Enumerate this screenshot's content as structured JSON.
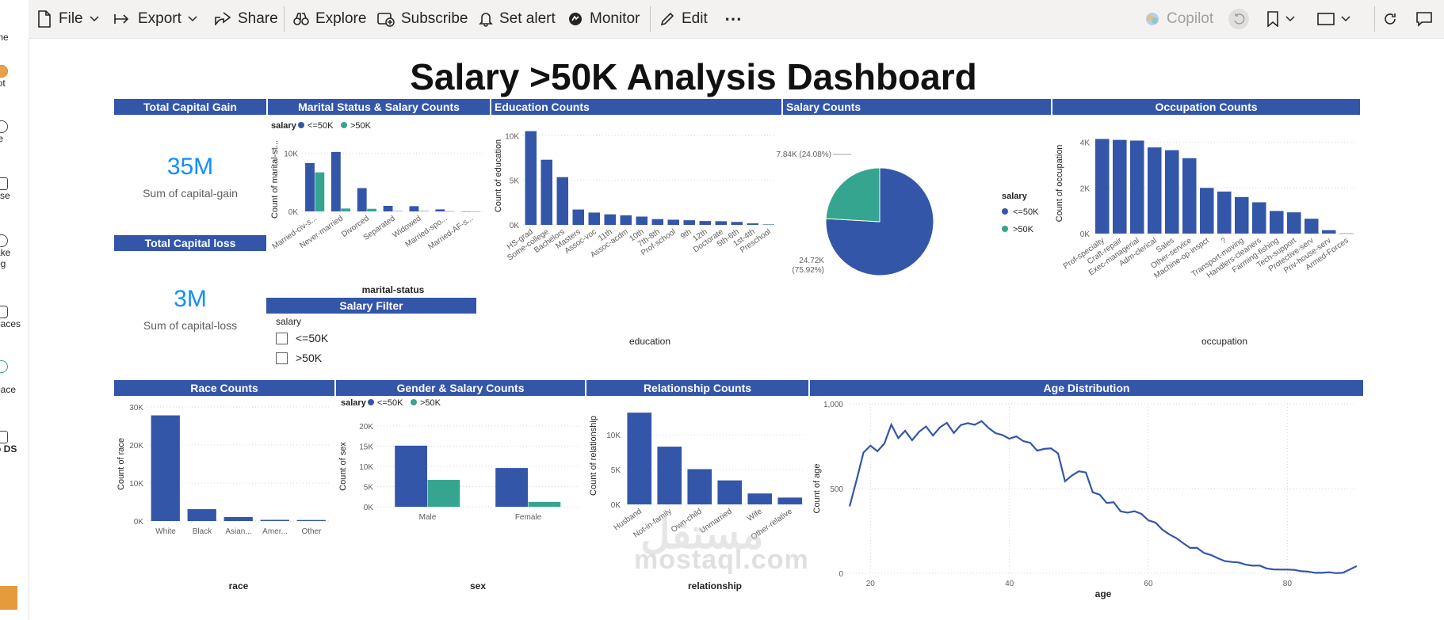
{
  "leftnav": {
    "items": [
      {
        "label": "me"
      },
      {
        "label": "lot"
      },
      {
        "label": "te"
      },
      {
        "label": "yse"
      },
      {
        "label": "ake"
      },
      {
        "label": "og"
      },
      {
        "label": "paces"
      },
      {
        "label": "y"
      },
      {
        "label": "pace"
      },
      {
        "label": "o DS"
      }
    ]
  },
  "toolbar": {
    "file": "File",
    "export": "Export",
    "share": "Share",
    "explore": "Explore",
    "subscribe": "Subscribe",
    "set_alert": "Set alert",
    "monitor": "Monitor",
    "edit": "Edit",
    "more": "⋯",
    "copilot": "Copilot"
  },
  "dashboard": {
    "title": "Salary >50K Analysis Dashboard",
    "kpis": {
      "gain_title": "Total Capital Gain",
      "gain_value": "35M",
      "gain_label": "Sum of capital-gain",
      "loss_title": "Total Capital loss",
      "loss_value": "3M",
      "loss_label": "Sum of capital-loss"
    },
    "slicer": {
      "title": "Salary Filter",
      "field": "salary",
      "options": [
        "<=50K",
        ">50K"
      ]
    },
    "watermark": {
      "arabic": "مستقل",
      "latin": "mostaql.com"
    }
  },
  "colors": {
    "primary": "#3356a9",
    "secondary": "#36a590",
    "header": "#3356a9",
    "kpi": "#118dff"
  },
  "chart_data": [
    {
      "id": "marital",
      "title": "Marital Status & Salary Counts",
      "type": "bar",
      "legend_title": "salary",
      "xlabel": "marital-status",
      "ylabel": "Count of marital-st...",
      "ylim": [
        0,
        11000
      ],
      "yticks": [
        0,
        10000
      ],
      "ytick_labels": [
        "0K",
        "10K"
      ],
      "categories": [
        "Married-civ-s...",
        "Never-married",
        "Divorced",
        "Separated",
        "Widowed",
        "Married-spo...",
        "Married-AF-s..."
      ],
      "series": [
        {
          "name": "<=50K",
          "values": [
            8300,
            10200,
            4000,
            950,
            900,
            350,
            15
          ]
        },
        {
          "name": ">50K",
          "values": [
            6700,
            500,
            450,
            70,
            85,
            35,
            10
          ]
        }
      ]
    },
    {
      "id": "education",
      "title": "Education Counts",
      "type": "bar",
      "xlabel": "education",
      "ylabel": "Count of education",
      "ylim": [
        0,
        11000
      ],
      "yticks": [
        0,
        5000,
        10000
      ],
      "ytick_labels": [
        "0K",
        "5K",
        "10K"
      ],
      "categories": [
        "HS-grad",
        "Some-college",
        "Bachelors",
        "Masters",
        "Assoc-voc",
        "11th",
        "Assoc-acdm",
        "10th",
        "7th-8th",
        "Prof-school",
        "9th",
        "12th",
        "Doctorate",
        "5th-6th",
        "1st-4th",
        "Preschool"
      ],
      "values": [
        10500,
        7300,
        5350,
        1720,
        1380,
        1180,
        1070,
        930,
        650,
        580,
        520,
        430,
        410,
        330,
        170,
        50
      ]
    },
    {
      "id": "salary",
      "title": "Salary Counts",
      "type": "pie",
      "legend_title": "salary",
      "categories": [
        "<=50K",
        ">50K"
      ],
      "values": [
        24720,
        7840
      ],
      "data_labels": [
        "24.72K (75.92%)",
        "7.84K (24.08%)"
      ]
    },
    {
      "id": "occupation",
      "title": "Occupation Counts",
      "type": "bar",
      "xlabel": "occupation",
      "ylabel": "Count of occupation",
      "ylim": [
        0,
        4400
      ],
      "yticks": [
        0,
        2000,
        4000
      ],
      "ytick_labels": [
        "0K",
        "2K",
        "4K"
      ],
      "categories": [
        "Prof-specialty",
        "Craft-repair",
        "Exec-managerial",
        "Adm-clerical",
        "Sales",
        "Other-service",
        "Machine-op-inspct",
        "?",
        "Transport-moving",
        "Handlers-cleaners",
        "Farming-fishing",
        "Tech-support",
        "Protective-serv",
        "Priv-house-serv",
        "Armed-Forces"
      ],
      "values": [
        4140,
        4100,
        4070,
        3770,
        3650,
        3300,
        2000,
        1840,
        1600,
        1370,
        990,
        930,
        650,
        150,
        9
      ]
    },
    {
      "id": "race",
      "title": "Race Counts",
      "type": "bar",
      "xlabel": "race",
      "ylabel": "Count of race",
      "ylim": [
        0,
        30000
      ],
      "yticks": [
        0,
        10000,
        20000,
        30000
      ],
      "ytick_labels": [
        "0K",
        "10K",
        "20K",
        "30K"
      ],
      "categories": [
        "White",
        "Black",
        "Asian...",
        "Amer...",
        "Other"
      ],
      "values": [
        27800,
        3120,
        1040,
        310,
        270
      ]
    },
    {
      "id": "gender",
      "title": "Gender & Salary Counts",
      "type": "bar",
      "legend_title": "salary",
      "xlabel": "sex",
      "ylabel": "Count of sex",
      "ylim": [
        0,
        20000
      ],
      "yticks": [
        0,
        5000,
        10000,
        15000,
        20000
      ],
      "ytick_labels": [
        "0K",
        "5K",
        "10K",
        "15K",
        "20K"
      ],
      "categories": [
        "Male",
        "Female"
      ],
      "series": [
        {
          "name": "<=50K",
          "values": [
            15130,
            9590
          ]
        },
        {
          "name": ">50K",
          "values": [
            6660,
            1180
          ]
        }
      ]
    },
    {
      "id": "relationship",
      "title": "Relationship Counts",
      "type": "bar",
      "xlabel": "relationship",
      "ylabel": "Count of relationship",
      "ylim": [
        0,
        14000
      ],
      "yticks": [
        0,
        5000,
        10000
      ],
      "ytick_labels": [
        "0K",
        "5K",
        "10K"
      ],
      "categories": [
        "Husband",
        "Not-in-family",
        "Own-child",
        "Unmarried",
        "Wife",
        "Other-relative"
      ],
      "values": [
        13190,
        8300,
        5070,
        3450,
        1570,
        980
      ]
    },
    {
      "id": "age",
      "title": "Age Distribution",
      "type": "line",
      "xlabel": "age",
      "ylabel": "Count of age",
      "xlim": [
        17,
        90
      ],
      "ylim": [
        0,
        1000
      ],
      "xticks": [
        20,
        40,
        60,
        80
      ],
      "yticks": [
        0,
        500,
        1000
      ],
      "ytick_labels": [
        "0",
        "500",
        "1,000"
      ],
      "x": [
        17,
        18,
        19,
        20,
        21,
        22,
        23,
        24,
        25,
        26,
        27,
        28,
        29,
        30,
        31,
        32,
        33,
        34,
        35,
        36,
        37,
        38,
        39,
        40,
        41,
        42,
        43,
        44,
        45,
        46,
        47,
        48,
        49,
        50,
        51,
        52,
        53,
        54,
        55,
        56,
        57,
        58,
        59,
        60,
        61,
        62,
        63,
        64,
        65,
        66,
        67,
        68,
        69,
        70,
        71,
        72,
        73,
        74,
        75,
        76,
        77,
        78,
        79,
        80,
        81,
        82,
        83,
        84,
        85,
        86,
        87,
        88,
        90
      ],
      "y": [
        395,
        550,
        712,
        753,
        720,
        765,
        877,
        798,
        841,
        785,
        835,
        867,
        813,
        861,
        888,
        828,
        875,
        886,
        876,
        898,
        858,
        827,
        816,
        794,
        808,
        780,
        770,
        724,
        734,
        737,
        708,
        543,
        577,
        602,
        595,
        478,
        464,
        415,
        419,
        366,
        358,
        366,
        351,
        312,
        300,
        258,
        230,
        208,
        178,
        150,
        150,
        120,
        108,
        89,
        72,
        67,
        64,
        51,
        45,
        46,
        29,
        23,
        22,
        22,
        20,
        12,
        10,
        3,
        3,
        6,
        1,
        3,
        43
      ]
    }
  ]
}
